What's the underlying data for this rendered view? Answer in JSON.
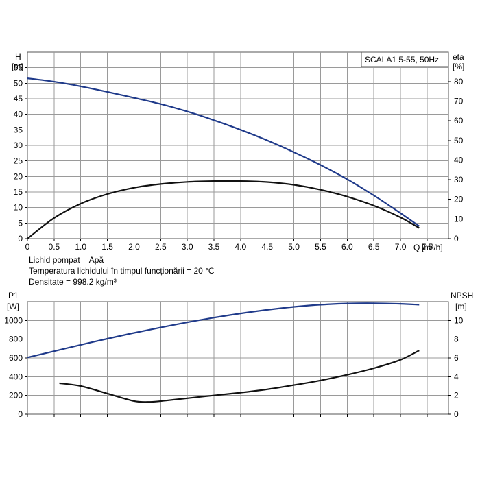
{
  "chart_data": [
    {
      "type": "line",
      "title": "SCALA1 5-55, 50Hz",
      "ylabel": "H",
      "ylabel_unit": "[m]",
      "y2label": "eta",
      "y2label_unit": "[%]",
      "xlabel": "Q",
      "xlabel_unit": "[m³/h]",
      "xlim": [
        0,
        7.9
      ],
      "ylim": [
        0,
        60
      ],
      "y2lim": [
        0,
        95
      ],
      "x_ticks": [
        "0",
        "0.5",
        "1.0",
        "1.5",
        "2.0",
        "2.5",
        "3.0",
        "3.5",
        "4.0",
        "4.5",
        "5.0",
        "5.5",
        "6.0",
        "6.5",
        "7.0",
        "7.5"
      ],
      "y_ticks": [
        "0",
        "5",
        "10",
        "15",
        "20",
        "25",
        "30",
        "35",
        "40",
        "45",
        "50",
        "55"
      ],
      "y2_ticks": [
        "0",
        "10",
        "20",
        "30",
        "40",
        "50",
        "60",
        "70",
        "80"
      ],
      "series": [
        {
          "name": "H",
          "axis": "left",
          "color": "#1f3a8a",
          "x": [
            0,
            0.5,
            1.0,
            1.5,
            2.0,
            2.5,
            3.0,
            3.5,
            4.0,
            4.5,
            5.0,
            5.5,
            6.0,
            6.5,
            7.0,
            7.35
          ],
          "y": [
            51.6,
            50.5,
            49.0,
            47.2,
            45.3,
            43.3,
            40.9,
            38.1,
            35.0,
            31.6,
            27.8,
            23.7,
            19.1,
            13.9,
            8.2,
            4.0
          ]
        },
        {
          "name": "eta",
          "axis": "right",
          "color": "#111111",
          "x": [
            0,
            0.5,
            1.0,
            1.5,
            2.0,
            2.5,
            3.0,
            3.5,
            4.0,
            4.5,
            5.0,
            5.5,
            6.0,
            6.5,
            7.0,
            7.35
          ],
          "y": [
            0,
            10.5,
            17.8,
            22.7,
            25.9,
            27.8,
            28.9,
            29.3,
            29.3,
            28.8,
            27.4,
            24.9,
            21.4,
            16.8,
            10.8,
            5.4
          ]
        }
      ],
      "conditions": [
        "Lichid pompat = Apă",
        "Temperatura lichidului în timpul funcționării = 20 °C",
        "Densitate = 998.2 kg/m³"
      ]
    },
    {
      "type": "line",
      "ylabel": "P1",
      "ylabel_unit": "[W]",
      "y2label": "NPSH",
      "y2label_unit": "[m]",
      "xlim": [
        0,
        7.9
      ],
      "ylim": [
        0,
        1200
      ],
      "y2lim": [
        0,
        12
      ],
      "y_ticks": [
        "0",
        "200",
        "400",
        "600",
        "800",
        "1000"
      ],
      "y2_ticks": [
        "0",
        "2",
        "4",
        "6",
        "8",
        "10"
      ],
      "series": [
        {
          "name": "P1",
          "axis": "left",
          "color": "#1f3a8a",
          "x": [
            0,
            0.5,
            1.0,
            1.5,
            2.0,
            2.5,
            3.0,
            3.5,
            4.0,
            4.5,
            5.0,
            5.5,
            6.0,
            6.5,
            7.0,
            7.35
          ],
          "y": [
            605,
            672,
            740,
            805,
            867,
            925,
            980,
            1030,
            1075,
            1113,
            1145,
            1168,
            1181,
            1183,
            1177,
            1168
          ]
        },
        {
          "name": "NPSH",
          "axis": "right",
          "color": "#111111",
          "x": [
            0.6,
            1.0,
            1.5,
            2.0,
            2.3,
            2.6,
            3.0,
            3.5,
            4.0,
            4.5,
            5.0,
            5.5,
            6.0,
            6.5,
            7.0,
            7.35
          ],
          "y": [
            3.3,
            3.0,
            2.2,
            1.4,
            1.3,
            1.45,
            1.7,
            2.0,
            2.3,
            2.65,
            3.1,
            3.6,
            4.2,
            4.9,
            5.8,
            6.8
          ]
        }
      ]
    }
  ]
}
